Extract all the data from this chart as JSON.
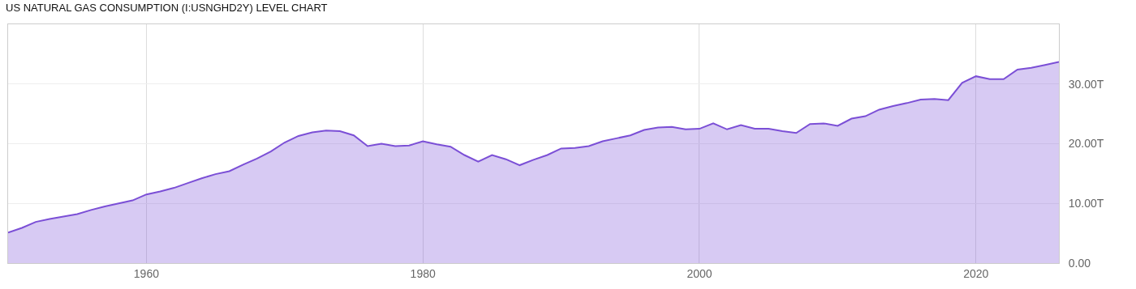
{
  "chart_data": {
    "type": "area",
    "title": "US NATURAL GAS CONSUMPTION (I:USNGHD2Y) LEVEL CHART",
    "x": [
      1950,
      1951,
      1952,
      1953,
      1954,
      1955,
      1956,
      1957,
      1958,
      1959,
      1960,
      1961,
      1962,
      1963,
      1964,
      1965,
      1966,
      1967,
      1968,
      1969,
      1970,
      1971,
      1972,
      1973,
      1974,
      1975,
      1976,
      1977,
      1978,
      1979,
      1980,
      1981,
      1982,
      1983,
      1984,
      1985,
      1986,
      1987,
      1988,
      1989,
      1990,
      1991,
      1992,
      1993,
      1994,
      1995,
      1996,
      1997,
      1998,
      1999,
      2000,
      2001,
      2002,
      2003,
      2004,
      2005,
      2006,
      2007,
      2008,
      2009,
      2010,
      2011,
      2012,
      2013,
      2014,
      2015,
      2016,
      2017,
      2018,
      2019,
      2020,
      2021,
      2022,
      2023,
      2024,
      2025,
      2026
    ],
    "series": [
      {
        "color": "#7b4fd6",
        "values": [
          5.1,
          5.9,
          6.9,
          7.4,
          7.8,
          8.2,
          8.9,
          9.5,
          10.0,
          10.5,
          11.5,
          12.0,
          12.6,
          13.4,
          14.2,
          14.9,
          15.4,
          16.5,
          17.5,
          18.7,
          20.2,
          21.3,
          21.9,
          22.2,
          22.1,
          21.4,
          19.6,
          20.0,
          19.6,
          19.7,
          20.4,
          19.9,
          19.5,
          18.1,
          17.0,
          18.1,
          17.4,
          16.4,
          17.3,
          18.1,
          19.2,
          19.3,
          19.6,
          20.4,
          20.9,
          21.4,
          22.3,
          22.7,
          22.8,
          22.4,
          22.5,
          23.4,
          22.4,
          23.1,
          22.5,
          22.5,
          22.1,
          21.8,
          23.3,
          23.4,
          23.0,
          24.2,
          24.6,
          25.7,
          26.3,
          26.8,
          27.4,
          27.5,
          27.3,
          30.2,
          31.3,
          30.8,
          30.8,
          32.4,
          32.7,
          33.2,
          33.7
        ]
      }
    ],
    "xlim": [
      1950,
      2026
    ],
    "xticks": [
      1960,
      1980,
      2000,
      2020
    ],
    "ylim": [
      0,
      40
    ],
    "yticks": [
      {
        "value": 0,
        "label": "0.00"
      },
      {
        "value": 10,
        "label": "10.00T"
      },
      {
        "value": 20,
        "label": "20.00T"
      },
      {
        "value": 30,
        "label": "30.00T"
      }
    ],
    "grid": true
  }
}
